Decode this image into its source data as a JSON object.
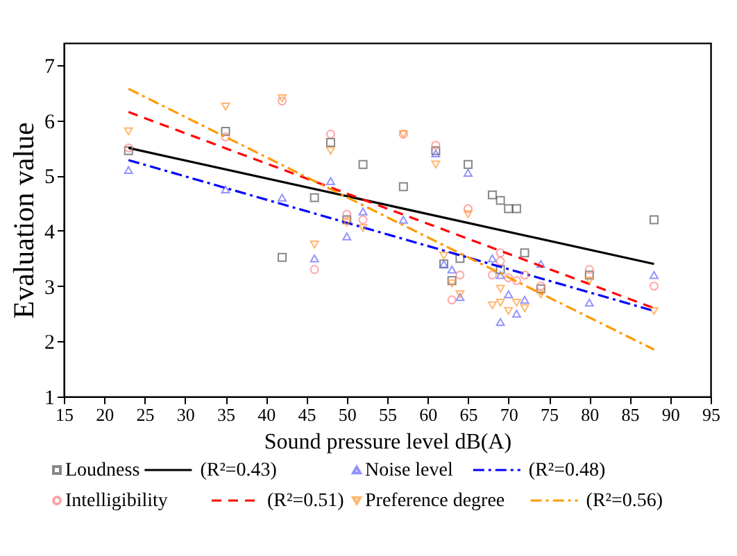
{
  "chart_data": {
    "type": "scatter",
    "xlabel": "Sound pressure level   dB(A)",
    "ylabel": "Evaluation value",
    "xlim": [
      15,
      95
    ],
    "xticks": [
      15,
      20,
      25,
      30,
      35,
      40,
      45,
      50,
      55,
      60,
      65,
      70,
      75,
      80,
      85,
      90,
      95
    ],
    "ylim": [
      1,
      7.4
    ],
    "yticks": [
      1,
      2,
      3,
      4,
      5,
      6,
      7
    ],
    "grid": false,
    "legend": "bottom",
    "series": [
      {
        "name": "Loudness",
        "type": "scatter",
        "marker": "square",
        "color": "#555555",
        "x": [
          23,
          35,
          42,
          46,
          48,
          50,
          52,
          57,
          61,
          62,
          63,
          64,
          65,
          68,
          69,
          69,
          70,
          71,
          72,
          74,
          80,
          88
        ],
        "values": [
          5.45,
          5.8,
          3.52,
          4.6,
          5.6,
          4.2,
          5.2,
          4.8,
          5.45,
          3.4,
          3.1,
          3.5,
          5.2,
          4.65,
          4.55,
          3.3,
          4.4,
          4.4,
          3.6,
          2.95,
          3.2,
          4.2
        ]
      },
      {
        "name": "(R²=0.43)",
        "type": "line",
        "marker": "none",
        "line_style": "solid",
        "color": "#000000",
        "x": [
          23,
          88
        ],
        "values": [
          5.5,
          3.4
        ]
      },
      {
        "name": "Noise level",
        "type": "scatter",
        "marker": "triangle",
        "color": "#6666ff",
        "x": [
          23,
          35,
          42,
          46,
          48,
          50,
          52,
          57,
          61,
          62,
          63,
          64,
          65,
          68,
          69,
          69,
          70,
          71,
          72,
          74,
          80,
          88
        ],
        "values": [
          5.1,
          4.75,
          4.6,
          3.5,
          4.9,
          3.9,
          4.35,
          4.2,
          5.4,
          3.4,
          3.3,
          2.8,
          5.05,
          3.5,
          3.2,
          2.35,
          2.85,
          2.5,
          2.75,
          3.4,
          2.7,
          3.2
        ]
      },
      {
        "name": "(R²=0.48)",
        "type": "line",
        "marker": "none",
        "line_style": "dashdot",
        "color": "#0000ff",
        "x": [
          23,
          88
        ],
        "values": [
          5.28,
          2.55
        ]
      },
      {
        "name": "Intelligibility",
        "type": "scatter",
        "marker": "circle",
        "color": "#ff8080",
        "x": [
          23,
          35,
          42,
          46,
          48,
          50,
          52,
          57,
          61,
          63,
          64,
          65,
          68,
          69,
          69,
          70,
          71,
          72,
          74,
          80,
          88
        ],
        "values": [
          5.5,
          5.7,
          6.35,
          3.3,
          5.75,
          4.3,
          4.2,
          5.75,
          5.55,
          2.75,
          3.2,
          4.4,
          3.2,
          3.6,
          3.45,
          3.15,
          3.1,
          3.2,
          3.0,
          3.3,
          3.0
        ]
      },
      {
        "name": "(R²=0.51)",
        "type": "line",
        "marker": "none",
        "line_style": "dashed",
        "color": "#ff0000",
        "x": [
          23,
          88
        ],
        "values": [
          6.15,
          2.6
        ]
      },
      {
        "name": "Preference degree",
        "type": "scatter",
        "marker": "triangle-down",
        "color": "#ff9933",
        "x": [
          23,
          35,
          42,
          46,
          48,
          50,
          52,
          57,
          61,
          62,
          63,
          64,
          65,
          68,
          69,
          69,
          70,
          71,
          72,
          74,
          80,
          88
        ],
        "values": [
          5.8,
          6.25,
          6.4,
          3.75,
          5.45,
          4.15,
          4.05,
          5.75,
          5.2,
          3.55,
          3.05,
          2.85,
          4.3,
          2.65,
          2.95,
          2.7,
          2.55,
          2.7,
          2.6,
          2.85,
          3.1,
          2.55
        ]
      },
      {
        "name": "(R²=0.56)",
        "type": "line",
        "marker": "none",
        "line_style": "dashdot",
        "color": "#ff9900",
        "x": [
          23,
          88
        ],
        "values": [
          6.57,
          1.85
        ]
      }
    ]
  }
}
